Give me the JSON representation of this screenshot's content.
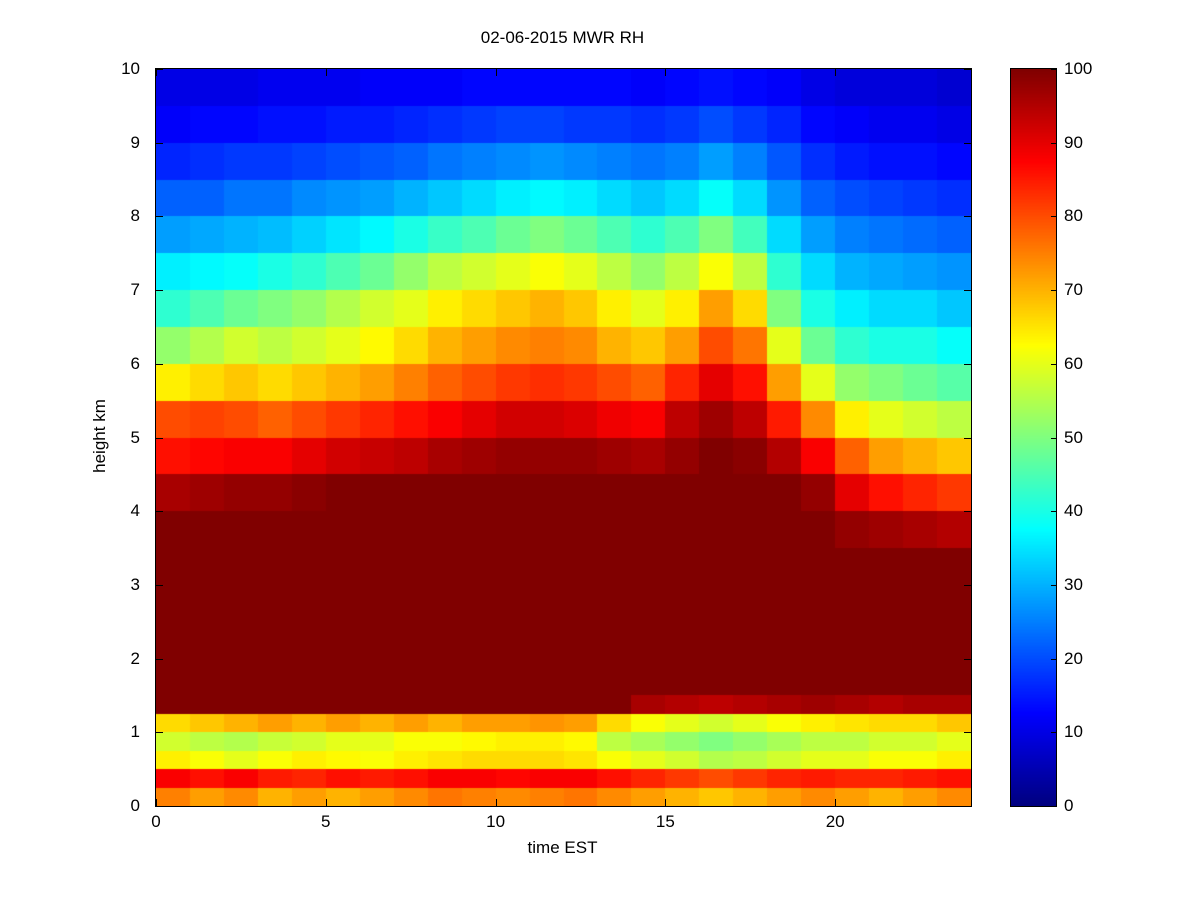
{
  "chart_data": {
    "type": "heatmap",
    "title": "02-06-2015 MWR RH",
    "xlabel": "time EST",
    "ylabel": "height km",
    "colormap": "jet",
    "clim": [
      0,
      100
    ],
    "xlim": [
      0,
      24
    ],
    "ylim": [
      0,
      10
    ],
    "x_ticks": [
      0,
      5,
      10,
      15,
      20
    ],
    "y_ticks": [
      0,
      1,
      2,
      3,
      4,
      5,
      6,
      7,
      8,
      9,
      10
    ],
    "colorbar_ticks": [
      0,
      10,
      20,
      30,
      40,
      50,
      60,
      70,
      80,
      90,
      100
    ],
    "grid": false,
    "legend": "colorbar-right",
    "x": [
      0,
      1,
      2,
      3,
      4,
      5,
      6,
      7,
      8,
      9,
      10,
      11,
      12,
      13,
      14,
      15,
      16,
      17,
      18,
      19,
      20,
      21,
      22,
      23
    ],
    "x_step": 1,
    "y_edges": [
      0,
      0.25,
      0.5,
      0.75,
      1,
      1.25,
      1.5,
      2,
      2.5,
      3,
      3.5,
      4,
      4.5,
      5,
      5.5,
      6,
      6.5,
      7,
      7.5,
      8,
      8.5,
      9,
      9.5,
      10
    ],
    "values_note": "columns[hour] = RH percent profile from ground (first) to 10 km (last), cell bounds given by y_edges",
    "columns": [
      [
        75,
        88,
        64,
        58,
        66,
        100,
        100,
        100,
        100,
        100,
        100,
        96,
        86,
        80,
        64,
        52,
        42,
        36,
        28,
        22,
        16,
        12,
        10
      ],
      [
        72,
        86,
        62,
        56,
        68,
        100,
        100,
        100,
        100,
        100,
        100,
        97,
        87,
        81,
        66,
        55,
        45,
        37,
        29,
        22,
        17,
        13,
        10
      ],
      [
        74,
        88,
        60,
        55,
        70,
        100,
        100,
        100,
        100,
        100,
        100,
        98,
        88,
        80,
        68,
        58,
        48,
        38,
        30,
        24,
        18,
        13,
        10
      ],
      [
        70,
        85,
        62,
        57,
        72,
        100,
        100,
        100,
        100,
        100,
        100,
        98,
        88,
        78,
        66,
        56,
        50,
        40,
        31,
        24,
        18,
        14,
        11
      ],
      [
        72,
        84,
        64,
        58,
        70,
        100,
        100,
        100,
        100,
        100,
        100,
        99,
        90,
        80,
        68,
        58,
        52,
        42,
        33,
        26,
        19,
        14,
        11
      ],
      [
        70,
        86,
        63,
        60,
        72,
        100,
        100,
        100,
        100,
        100,
        100,
        100,
        92,
        82,
        70,
        60,
        55,
        45,
        35,
        27,
        20,
        15,
        11
      ],
      [
        72,
        85,
        62,
        60,
        70,
        100,
        100,
        100,
        100,
        100,
        100,
        100,
        93,
        84,
        72,
        63,
        58,
        48,
        37,
        28,
        21,
        15,
        12
      ],
      [
        74,
        86,
        64,
        62,
        72,
        100,
        100,
        100,
        100,
        100,
        100,
        100,
        94,
        86,
        75,
        66,
        60,
        52,
        40,
        30,
        22,
        16,
        12
      ],
      [
        76,
        88,
        65,
        62,
        70,
        100,
        100,
        100,
        100,
        100,
        100,
        100,
        96,
        88,
        78,
        70,
        64,
        56,
        43,
        32,
        24,
        17,
        12
      ],
      [
        75,
        88,
        66,
        63,
        72,
        100,
        100,
        100,
        100,
        100,
        100,
        100,
        97,
        90,
        80,
        72,
        66,
        58,
        45,
        34,
        25,
        18,
        13
      ],
      [
        74,
        87,
        66,
        64,
        72,
        100,
        100,
        100,
        100,
        100,
        100,
        100,
        98,
        92,
        82,
        74,
        68,
        60,
        48,
        36,
        26,
        19,
        13
      ],
      [
        75,
        88,
        66,
        64,
        73,
        100,
        100,
        100,
        100,
        100,
        100,
        100,
        98,
        92,
        83,
        75,
        70,
        62,
        50,
        37,
        27,
        19,
        13
      ],
      [
        76,
        88,
        65,
        63,
        72,
        100,
        100,
        100,
        100,
        100,
        100,
        100,
        98,
        91,
        82,
        74,
        68,
        60,
        48,
        36,
        26,
        18,
        13
      ],
      [
        74,
        86,
        62,
        56,
        66,
        100,
        100,
        100,
        100,
        100,
        100,
        100,
        97,
        89,
        80,
        70,
        64,
        56,
        45,
        34,
        25,
        18,
        13
      ],
      [
        72,
        84,
        60,
        54,
        62,
        96,
        100,
        100,
        100,
        100,
        100,
        100,
        96,
        88,
        78,
        68,
        60,
        52,
        42,
        32,
        24,
        17,
        12
      ],
      [
        70,
        82,
        58,
        52,
        60,
        95,
        100,
        100,
        100,
        100,
        100,
        100,
        98,
        94,
        84,
        72,
        64,
        56,
        45,
        34,
        25,
        18,
        13
      ],
      [
        68,
        80,
        55,
        50,
        58,
        94,
        100,
        100,
        100,
        100,
        100,
        100,
        100,
        97,
        90,
        80,
        72,
        62,
        50,
        38,
        28,
        20,
        14
      ],
      [
        70,
        82,
        56,
        52,
        60,
        95,
        100,
        100,
        100,
        100,
        100,
        100,
        99,
        94,
        86,
        76,
        66,
        56,
        44,
        34,
        25,
        18,
        13
      ],
      [
        72,
        84,
        58,
        54,
        62,
        96,
        100,
        100,
        100,
        100,
        100,
        100,
        95,
        85,
        72,
        60,
        50,
        42,
        34,
        27,
        21,
        16,
        12
      ],
      [
        74,
        85,
        60,
        56,
        64,
        97,
        100,
        100,
        100,
        100,
        100,
        98,
        88,
        74,
        60,
        48,
        40,
        34,
        28,
        22,
        17,
        13,
        10
      ],
      [
        72,
        84,
        60,
        56,
        65,
        96,
        100,
        100,
        100,
        100,
        98,
        90,
        78,
        64,
        52,
        42,
        36,
        30,
        25,
        20,
        15,
        12,
        9
      ],
      [
        70,
        84,
        62,
        58,
        66,
        95,
        100,
        100,
        100,
        100,
        97,
        86,
        72,
        60,
        50,
        40,
        34,
        29,
        24,
        19,
        14,
        11,
        9
      ],
      [
        72,
        85,
        62,
        58,
        66,
        96,
        100,
        100,
        100,
        100,
        96,
        84,
        70,
        58,
        48,
        40,
        34,
        28,
        23,
        18,
        14,
        11,
        9
      ],
      [
        74,
        86,
        64,
        60,
        68,
        96,
        100,
        100,
        100,
        100,
        95,
        82,
        68,
        56,
        46,
        38,
        32,
        27,
        22,
        17,
        13,
        10,
        8
      ]
    ]
  },
  "colors": {
    "background": "#ffffff",
    "axis": "#000000",
    "text": "#000000",
    "colormap_low": "#00008f",
    "colormap_high": "#800000"
  }
}
